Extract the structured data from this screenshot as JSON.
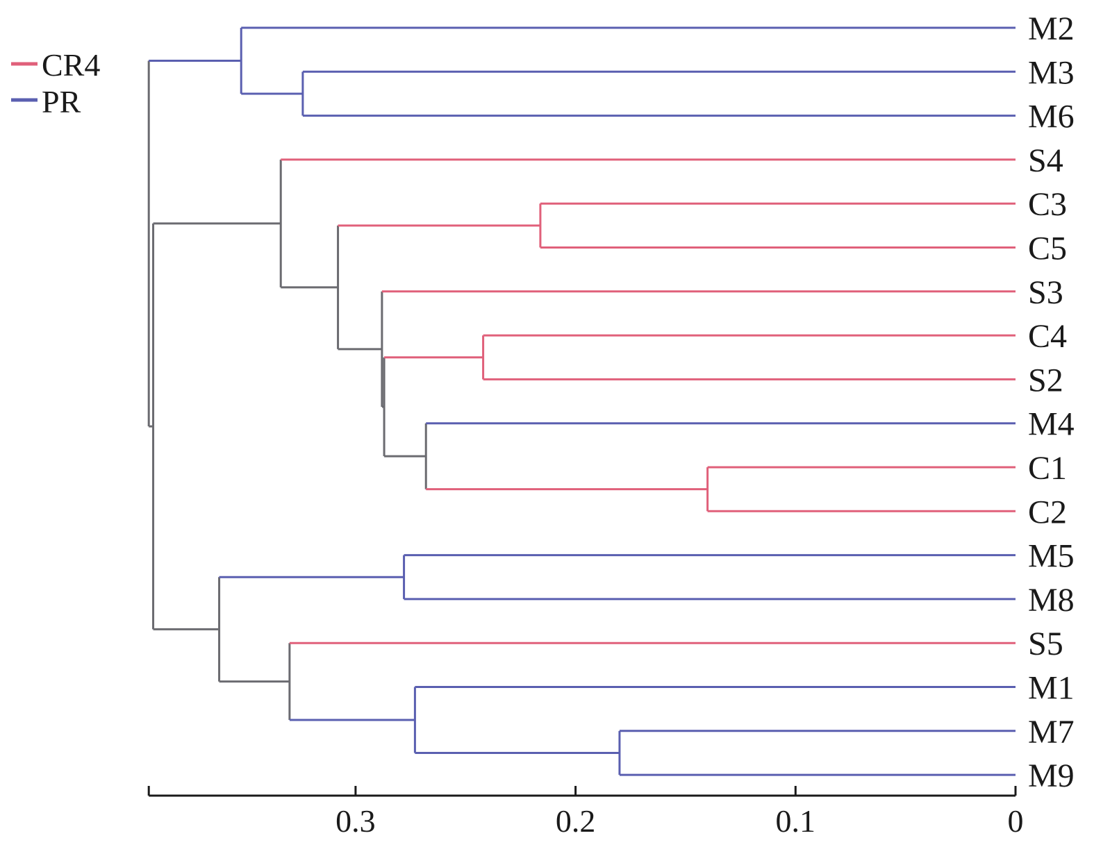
{
  "chart_data": {
    "type": "dendrogram",
    "orientation": "horizontal, root at left, leaves at right",
    "xlabel": "",
    "ylabel": "",
    "xlim": [
      0.394,
      0
    ],
    "x_ticks": [
      0.3,
      0.2,
      0.1,
      0
    ],
    "x_tick_labels": [
      "0.3",
      "0.2",
      "0.1",
      "0"
    ],
    "legend": {
      "position": "top-left",
      "entries": [
        {
          "label": "CR4",
          "color": "#e0607a"
        },
        {
          "label": "PR",
          "color": "#5a5fb0"
        }
      ]
    },
    "colors": {
      "CR4": "#e0607a",
      "PR": "#5a5fb0",
      "mixed": "#6b6b70",
      "axis": "#1a1a1a"
    },
    "leaf_groups": {
      "M2": "PR",
      "M3": "PR",
      "M6": "PR",
      "M4": "PR",
      "M5": "PR",
      "M8": "PR",
      "M1": "PR",
      "M7": "PR",
      "M9": "PR",
      "S4": "CR4",
      "C3": "CR4",
      "C5": "CR4",
      "S3": "CR4",
      "C4": "CR4",
      "S2": "CR4",
      "C1": "CR4",
      "C2": "CR4",
      "S5": "CR4"
    },
    "tree": {
      "h": 0.394,
      "children": [
        {
          "h": 0.352,
          "children": [
            {
              "leaf": "M2"
            },
            {
              "h": 0.324,
              "children": [
                {
                  "leaf": "M3"
                },
                {
                  "leaf": "M6"
                }
              ]
            }
          ]
        },
        {
          "h": 0.392,
          "children": [
            {
              "h": 0.334,
              "children": [
                {
                  "leaf": "S4"
                },
                {
                  "h": 0.308,
                  "children": [
                    {
                      "h": 0.216,
                      "children": [
                        {
                          "leaf": "C3"
                        },
                        {
                          "leaf": "C5"
                        }
                      ]
                    },
                    {
                      "h": 0.288,
                      "children": [
                        {
                          "leaf": "S3"
                        },
                        {
                          "h": 0.287,
                          "children": [
                            {
                              "h": 0.242,
                              "children": [
                                {
                                  "leaf": "C4"
                                },
                                {
                                  "leaf": "S2"
                                }
                              ]
                            },
                            {
                              "h": 0.268,
                              "children": [
                                {
                                  "leaf": "M4"
                                },
                                {
                                  "h": 0.14,
                                  "children": [
                                    {
                                      "leaf": "C1"
                                    },
                                    {
                                      "leaf": "C2"
                                    }
                                  ]
                                }
                              ]
                            }
                          ]
                        }
                      ]
                    }
                  ]
                }
              ]
            },
            {
              "h": 0.362,
              "children": [
                {
                  "h": 0.278,
                  "children": [
                    {
                      "leaf": "M5"
                    },
                    {
                      "leaf": "M8"
                    }
                  ]
                },
                {
                  "h": 0.33,
                  "children": [
                    {
                      "leaf": "S5"
                    },
                    {
                      "h": 0.273,
                      "children": [
                        {
                          "leaf": "M1"
                        },
                        {
                          "h": 0.18,
                          "children": [
                            {
                              "leaf": "M7"
                            },
                            {
                              "leaf": "M9"
                            }
                          ]
                        }
                      ]
                    }
                  ]
                }
              ]
            }
          ]
        }
      ]
    }
  }
}
